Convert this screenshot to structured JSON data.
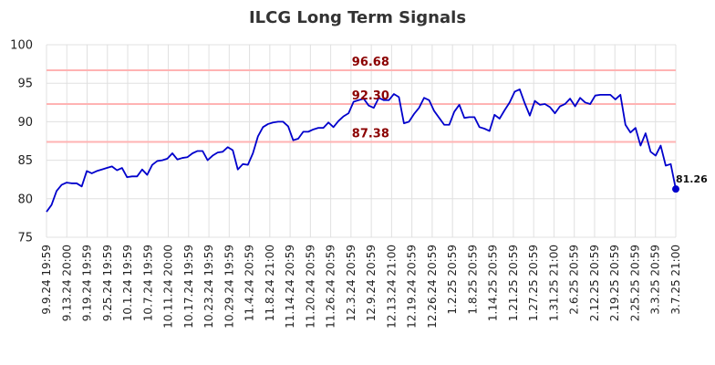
{
  "chart_data": {
    "type": "line",
    "title": "ILCG Long Term Signals",
    "xlabel": "",
    "ylabel": "",
    "ylim": [
      75,
      100
    ],
    "yticks": [
      75,
      80,
      85,
      90,
      95,
      100
    ],
    "grid": true,
    "colors": {
      "line": "#0000cc",
      "level_line": "#ffb3b3",
      "level_text": "#8b0000",
      "grid": "#e0e0e0"
    },
    "levels": [
      {
        "value": 96.68,
        "label": "96.68"
      },
      {
        "value": 92.3,
        "label": "92.30"
      },
      {
        "value": 87.38,
        "label": "87.38"
      }
    ],
    "x_tick_labels": [
      "9.9.24 19:59",
      "9.13.24 20:00",
      "9.19.24 19:59",
      "9.25.24 19:59",
      "10.1.24 19:59",
      "10.7.24 19:59",
      "10.11.24 20:00",
      "10.17.24 19:59",
      "10.23.24 19:59",
      "10.29.24 19:59",
      "11.4.24 20:59",
      "11.8.24 21:00",
      "11.14.24 20:59",
      "11.20.24 20:59",
      "11.26.24 20:59",
      "12.3.24 20:59",
      "12.9.24 20:59",
      "12.13.24 21:00",
      "12.19.24 20:59",
      "12.26.24 20:59",
      "1.2.25 20:59",
      "1.8.25 20:59",
      "1.14.25 20:59",
      "1.21.25 20:59",
      "1.27.25 20:59",
      "1.31.25 21:00",
      "2.6.25 20:59",
      "2.12.25 20:59",
      "2.19.25 20:59",
      "2.25.25 20:59",
      "3.3.25 20:59",
      "3.7.25 21:00"
    ],
    "series": [
      {
        "values": [
          78.3,
          79.2,
          81.0,
          81.8,
          82.1,
          82.0,
          82.0,
          81.6,
          83.6,
          83.3,
          83.6,
          83.8,
          84.0,
          84.2,
          83.7,
          84.0,
          82.8,
          82.9,
          82.9,
          83.8,
          83.1,
          84.4,
          84.9,
          85.0,
          85.2,
          85.9,
          85.1,
          85.3,
          85.4,
          85.9,
          86.2,
          86.2,
          85.0,
          85.6,
          86.0,
          86.1,
          86.7,
          86.3,
          83.8,
          84.5,
          84.4,
          85.9,
          88.1,
          89.3,
          89.7,
          89.9,
          90.0,
          90.0,
          89.4,
          87.6,
          87.8,
          88.7,
          88.7,
          89.0,
          89.2,
          89.2,
          89.9,
          89.3,
          90.1,
          90.7,
          91.1,
          92.6,
          92.8,
          93.0,
          92.1,
          91.8,
          93.1,
          92.8,
          92.8,
          93.6,
          93.2,
          89.8,
          90.0,
          91.0,
          91.8,
          93.1,
          92.8,
          91.4,
          90.5,
          89.6,
          89.6,
          91.3,
          92.2,
          90.5,
          90.6,
          90.6,
          89.3,
          89.1,
          88.8,
          90.9,
          90.4,
          91.5,
          92.5,
          93.9,
          94.2,
          92.4,
          90.8,
          92.7,
          92.2,
          92.3,
          91.9,
          91.1,
          92.0,
          92.3,
          93.0,
          92.0,
          93.1,
          92.5,
          92.3,
          93.4,
          93.5,
          93.5,
          93.5,
          92.9,
          93.5,
          89.6,
          88.6,
          89.2,
          86.9,
          88.5,
          86.1,
          85.6,
          86.9,
          84.3,
          84.5,
          81.26
        ]
      }
    ],
    "last_value_label": "81.26"
  }
}
